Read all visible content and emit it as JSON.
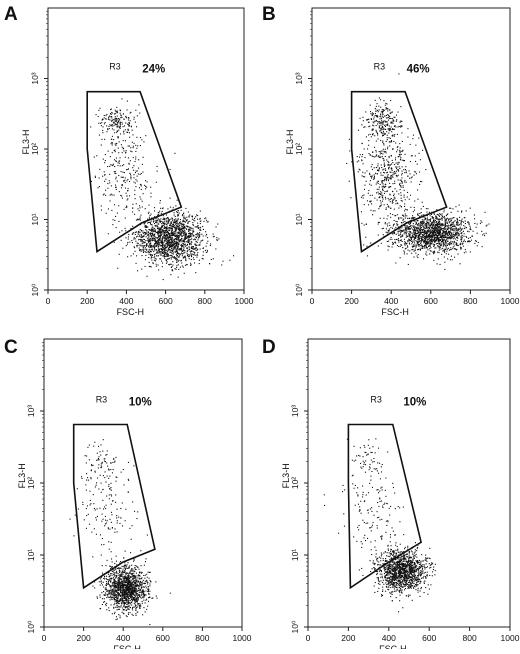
{
  "chart_data": [
    {
      "type": "scatter",
      "panel_label": "A",
      "gate_label": "R3",
      "gate_percent": "24%",
      "xlabel": "FSC-H",
      "ylabel": "FL3-H",
      "xlim": [
        0,
        1000
      ],
      "ylim_log10": [
        0,
        4
      ],
      "y_scale": "log",
      "x_ticks": [
        "0",
        "200",
        "400",
        "600",
        "800",
        "1000"
      ],
      "y_ticks": [
        "10⁰",
        "10¹",
        "10²",
        "10³"
      ],
      "gate_polygon": [
        [
          200,
          650
        ],
        [
          470,
          650
        ],
        [
          680,
          15
        ],
        [
          480,
          9
        ],
        [
          250,
          3.5
        ],
        [
          200,
          100
        ]
      ],
      "populations": [
        {
          "name": "main",
          "cx": 620,
          "cy": 5.5,
          "sx": 90,
          "sy": 0.18,
          "n": 1600
        },
        {
          "name": "gate-upper",
          "cx": 350,
          "cy": 250,
          "sx": 45,
          "sy": 0.12,
          "n": 160
        },
        {
          "name": "gate-spread",
          "cx": 380,
          "cy": 50,
          "sx": 70,
          "sy": 0.35,
          "n": 260
        }
      ]
    },
    {
      "type": "scatter",
      "panel_label": "B",
      "gate_label": "R3",
      "gate_percent": "46%",
      "xlabel": "FSC-H",
      "ylabel": "FL3-H",
      "xlim": [
        0,
        1000
      ],
      "ylim_log10": [
        0,
        4
      ],
      "y_scale": "log",
      "x_ticks": [
        "0",
        "200",
        "400",
        "600",
        "800",
        "1000"
      ],
      "y_ticks": [
        "10⁰",
        "10¹",
        "10²",
        "10³"
      ],
      "gate_polygon": [
        [
          200,
          650
        ],
        [
          470,
          650
        ],
        [
          680,
          15
        ],
        [
          480,
          9
        ],
        [
          250,
          3.5
        ],
        [
          200,
          100
        ]
      ],
      "populations": [
        {
          "name": "main",
          "cx": 600,
          "cy": 6.5,
          "sx": 100,
          "sy": 0.14,
          "n": 1500
        },
        {
          "name": "gate-upper",
          "cx": 350,
          "cy": 250,
          "sx": 45,
          "sy": 0.12,
          "n": 220
        },
        {
          "name": "gate-spread",
          "cx": 380,
          "cy": 45,
          "sx": 75,
          "sy": 0.35,
          "n": 520
        }
      ]
    },
    {
      "type": "scatter",
      "panel_label": "C",
      "gate_label": "R3",
      "gate_percent": "10%",
      "xlabel": "FSC-H",
      "ylabel": "FL3-H",
      "xlim": [
        0,
        1000
      ],
      "ylim_log10": [
        0,
        4
      ],
      "y_scale": "log",
      "x_ticks": [
        "0",
        "200",
        "400",
        "600",
        "800",
        "1000"
      ],
      "y_ticks": [
        "10⁰",
        "10¹",
        "10²",
        "10³"
      ],
      "gate_polygon": [
        [
          150,
          650
        ],
        [
          420,
          650
        ],
        [
          560,
          12
        ],
        [
          400,
          8
        ],
        [
          200,
          3.5
        ],
        [
          150,
          100
        ]
      ],
      "populations": [
        {
          "name": "main",
          "cx": 410,
          "cy": 3.5,
          "sx": 55,
          "sy": 0.16,
          "n": 1300
        },
        {
          "name": "gate-upper",
          "cx": 290,
          "cy": 200,
          "sx": 50,
          "sy": 0.15,
          "n": 60
        },
        {
          "name": "gate-spread",
          "cx": 320,
          "cy": 40,
          "sx": 70,
          "sy": 0.35,
          "n": 150
        }
      ]
    },
    {
      "type": "scatter",
      "panel_label": "D",
      "gate_label": "R3",
      "gate_percent": "10%",
      "xlabel": "FSC-H",
      "ylabel": "FL3-H",
      "xlim": [
        0,
        1000
      ],
      "ylim_log10": [
        0,
        4
      ],
      "y_scale": "log",
      "x_ticks": [
        "0",
        "200",
        "400",
        "600",
        "800",
        "1000"
      ],
      "y_ticks": [
        "10⁰",
        "10¹",
        "10²",
        "10³"
      ],
      "gate_polygon": [
        [
          200,
          650
        ],
        [
          420,
          650
        ],
        [
          560,
          15
        ],
        [
          400,
          8
        ],
        [
          210,
          3.5
        ],
        [
          200,
          100
        ]
      ],
      "populations": [
        {
          "name": "main",
          "cx": 460,
          "cy": 6.0,
          "sx": 60,
          "sy": 0.15,
          "n": 1300
        },
        {
          "name": "gate-upper",
          "cx": 300,
          "cy": 220,
          "sx": 50,
          "sy": 0.15,
          "n": 55
        },
        {
          "name": "gate-spread",
          "cx": 330,
          "cy": 40,
          "sx": 70,
          "sy": 0.35,
          "n": 140
        }
      ]
    }
  ]
}
